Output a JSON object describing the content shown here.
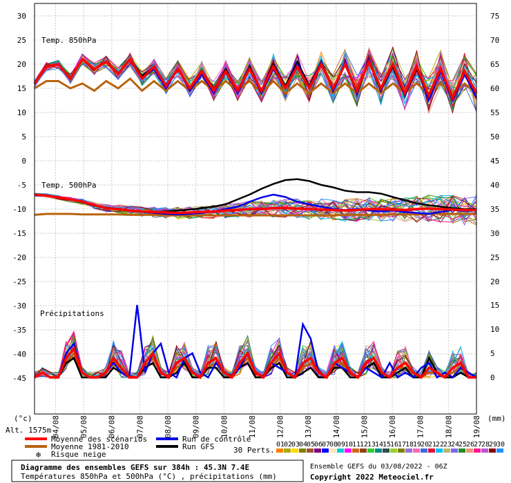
{
  "chart_data": {
    "type": "line",
    "x_dates": [
      "04/08",
      "05/08",
      "06/08",
      "07/08",
      "08/08",
      "09/08",
      "10/08",
      "11/08",
      "12/08",
      "13/08",
      "14/08",
      "15/08",
      "16/08",
      "17/08",
      "18/08",
      "19/08"
    ],
    "left_axis_ticks": [
      "30",
      "25",
      "20",
      "15",
      "10",
      "5",
      "0",
      "-5",
      "-10",
      "-15",
      "-20",
      "-25",
      "-30",
      "-35",
      "-40",
      "-45"
    ],
    "right_axis_ticks_top": [
      "75",
      "70",
      "65",
      "60",
      "55",
      "50"
    ],
    "right_axis_ticks_mid": [
      "45",
      "40",
      "35",
      "30",
      "25",
      "20",
      "15",
      "10",
      "5",
      "0"
    ],
    "left_unit": "(°c)",
    "right_unit": "(mm)",
    "altitude": "Alt. 1575m",
    "panel_labels": {
      "t850": "Temp. 850hPa",
      "t500": "Temp. 500hPa",
      "precip": "Précipitations"
    },
    "x_start_day": 3.25,
    "x_end_day": 19,
    "t850": {
      "mean_scenarios": [
        16,
        19.5,
        20,
        17,
        21,
        19,
        20.5,
        18,
        21,
        17,
        19.5,
        15.5,
        19,
        15,
        18.5,
        14.5,
        18.5,
        14.5,
        19,
        14.5,
        19.5,
        15,
        19.5,
        15,
        20,
        15,
        20,
        14.5,
        20.5,
        15,
        20,
        14,
        19.5,
        13.5,
        19,
        13,
        18.5,
        14
      ],
      "climatology": [
        15,
        16.5,
        16.5,
        15,
        16,
        14.5,
        16.5,
        15,
        17,
        14.5,
        16.5,
        14.5,
        16.5,
        14.5,
        16.5,
        14.5,
        16.5,
        14.5,
        16.5,
        14,
        16.5,
        14,
        16,
        14,
        16,
        14,
        16,
        14,
        16,
        14,
        16,
        14,
        16,
        14,
        16,
        14,
        16,
        14
      ],
      "control": [
        16,
        19.5,
        20,
        17,
        21,
        19,
        20.5,
        18,
        21,
        17,
        19,
        15,
        19,
        14.5,
        18,
        14,
        18.5,
        14,
        19,
        14,
        19,
        15,
        20,
        15,
        20.5,
        14.5,
        20.5,
        14,
        21,
        14.5,
        20,
        13.5,
        19.5,
        12.5,
        18.5,
        12.5,
        18,
        13
      ],
      "gfs": [
        16,
        19.5,
        20,
        17,
        21,
        19,
        20.5,
        18,
        21,
        17.5,
        19.5,
        15.5,
        19,
        15,
        18.5,
        14.5,
        19,
        14.5,
        19.5,
        14.5,
        20,
        15.5,
        20.5,
        15.5,
        20.5,
        14.5,
        20,
        14,
        20.5,
        14.5,
        19.5,
        13.5,
        19,
        13,
        18.5,
        13,
        18,
        14
      ]
    },
    "t500": {
      "mean_scenarios": [
        -7,
        -7.2,
        -7.6,
        -8,
        -8.5,
        -9.2,
        -9.8,
        -10,
        -10.3,
        -10.5,
        -10.6,
        -10.7,
        -10.8,
        -10.7,
        -10.6,
        -10.5,
        -10.3,
        -10.2,
        -10,
        -10,
        -9.8,
        -9.8,
        -9.9,
        -10,
        -10.1,
        -10.2,
        -10.3,
        -10.2,
        -10,
        -10,
        -10.1,
        -10.2,
        -10,
        -9.9,
        -10,
        -10.1,
        -10.2,
        -10.2
      ],
      "climatology": [
        -11.2,
        -11,
        -11,
        -11,
        -11.1,
        -11.1,
        -11.1,
        -11.1,
        -11.2,
        -11.2,
        -11.2,
        -11.3,
        -11.3,
        -11.3,
        -11.3,
        -11.3,
        -11.3,
        -11.3,
        -11.3,
        -11.3,
        -11.3,
        -11.3,
        -11.3,
        -11.3,
        -11.3,
        -11.3,
        -11.2,
        -11.2,
        -11.2,
        -11.2,
        -11.1,
        -11.1,
        -11.1,
        -11,
        -11,
        -11,
        -11,
        -11
      ],
      "control": [
        -7,
        -7.2,
        -7.6,
        -8,
        -8.6,
        -9.3,
        -9.8,
        -10,
        -10.4,
        -10.6,
        -10.8,
        -11,
        -11.1,
        -11,
        -10.8,
        -10.5,
        -10,
        -9.5,
        -8.5,
        -7.6,
        -7,
        -7.5,
        -8.5,
        -9,
        -9.5,
        -10,
        -10.2,
        -10,
        -10.3,
        -10.5,
        -10.3,
        -10.6,
        -10.8,
        -11,
        -10.6,
        -10.2,
        -10.4,
        -10.2
      ],
      "gfs": [
        -7,
        -7.2,
        -7.6,
        -8,
        -8.6,
        -9.2,
        -9.7,
        -10,
        -10.3,
        -10.5,
        -10.6,
        -10.5,
        -10.3,
        -10.1,
        -9.8,
        -9.5,
        -9,
        -8,
        -7,
        -5.8,
        -4.8,
        -4,
        -3.8,
        -4.2,
        -5,
        -5.5,
        -6.2,
        -6.5,
        -6.5,
        -6.8,
        -7.5,
        -8.2,
        -8.8,
        -9.2,
        -9.5,
        -9.8,
        -10,
        -10
      ]
    },
    "precip": {
      "mean_scenarios": [
        0,
        1,
        0,
        0,
        4,
        6,
        1,
        0,
        0,
        1,
        4,
        2,
        0,
        0,
        3,
        5,
        1,
        0,
        3,
        4,
        1,
        0,
        3,
        4,
        1,
        0,
        3,
        5,
        1,
        0,
        3,
        5,
        1,
        0,
        3,
        4,
        1,
        0,
        3,
        4,
        1,
        0,
        3,
        4,
        1,
        0,
        2,
        3,
        1,
        0,
        2,
        1,
        0,
        2,
        3,
        0,
        0
      ],
      "climatology": [
        0,
        1,
        0,
        0,
        3,
        5,
        1,
        0,
        0,
        1,
        3,
        2,
        0,
        0,
        2,
        4,
        1,
        0,
        2,
        3,
        1,
        0,
        2,
        3,
        1,
        0,
        2,
        4,
        1,
        0,
        2,
        4,
        1,
        0,
        2,
        3,
        1,
        0,
        2,
        3,
        1,
        0,
        2,
        3,
        1,
        0,
        2,
        2,
        1,
        0,
        1,
        1,
        0,
        1,
        2,
        0,
        0
      ],
      "control": [
        0,
        1,
        0,
        0,
        5,
        7,
        1,
        0,
        0,
        1,
        3,
        1,
        0,
        15,
        1,
        5,
        7,
        1,
        0,
        4,
        5,
        1,
        0,
        3,
        1,
        0,
        2,
        5,
        1,
        0,
        3,
        2,
        1,
        0,
        11,
        8,
        1,
        0,
        3,
        2,
        1,
        0,
        2,
        1,
        0,
        3,
        0,
        1,
        0,
        2,
        3,
        0,
        1,
        0,
        2,
        1,
        0
      ],
      "gfs": [
        0,
        1,
        0,
        0,
        3,
        4,
        0,
        0,
        0,
        0,
        2,
        1,
        0,
        0,
        2,
        3,
        0,
        0,
        1,
        3,
        0,
        0,
        2,
        2,
        0,
        0,
        2,
        3,
        0,
        0,
        2,
        3,
        0,
        0,
        1,
        2,
        0,
        0,
        2,
        2,
        0,
        0,
        2,
        3,
        0,
        0,
        1,
        2,
        0,
        0,
        4,
        1,
        0,
        0,
        1,
        0,
        0
      ]
    },
    "legend": {
      "mean": "Moyenne des scénarios",
      "climatology": "Moyenne 1981-2010",
      "snow": "Risque neige",
      "control": "Run de contrôle",
      "gfs": "Run GFS",
      "perts": "30 Perts."
    },
    "pert_labels": [
      "01",
      "02",
      "03",
      "04",
      "05",
      "06",
      "07",
      "08",
      "09",
      "10",
      "11",
      "12",
      "13",
      "14",
      "15",
      "16",
      "17",
      "18",
      "19",
      "20",
      "21",
      "22",
      "23",
      "24",
      "25",
      "26",
      "27",
      "28",
      "29",
      "30"
    ],
    "pert_colors": [
      "#ff7f00",
      "#aaaa00",
      "#ffd700",
      "#7f7f00",
      "#a0522d",
      "#7f007f",
      "#0000ff",
      "#ffe4b5",
      "#00ced1",
      "#ff00ff",
      "#d2691e",
      "#8b4513",
      "#32cd32",
      "#008b8b",
      "#2f4f4f",
      "#9acd32",
      "#808000",
      "#9370db",
      "#ff69b4",
      "#4169e1",
      "#dc143c",
      "#00bfff",
      "#bdb76b",
      "#7b68ee",
      "#228b22",
      "#e9967a",
      "#ff1493",
      "#ba55d3",
      "#8b0000",
      "#1e90ff"
    ],
    "colors": {
      "mean": "#ff0000",
      "climatology": "#b8620a",
      "control": "#0000e6",
      "gfs": "#000000"
    }
  },
  "footer": {
    "title": "Diagramme des ensembles GEFS sur 384h : 45.3N 7.4E",
    "subtitle": "Températures 850hPa et 500hPa (°C) , précipitations (mm)",
    "run": "Ensemble GEFS du 03/08/2022 - 06Z",
    "copyright": "Copyright 2022 Meteociel.fr"
  }
}
